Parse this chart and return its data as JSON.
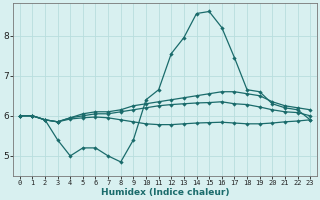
{
  "xlabel": "Humidex (Indice chaleur)",
  "x": [
    0,
    1,
    2,
    3,
    4,
    5,
    6,
    7,
    8,
    9,
    10,
    11,
    12,
    13,
    14,
    15,
    16,
    17,
    18,
    19,
    20,
    21,
    22,
    23
  ],
  "line_top": [
    6.0,
    6.0,
    5.9,
    5.4,
    5.0,
    5.2,
    5.2,
    5.0,
    4.85,
    5.4,
    6.4,
    6.65,
    7.55,
    7.95,
    8.55,
    8.6,
    8.2,
    7.45,
    6.65,
    6.6,
    6.3,
    6.2,
    6.15,
    5.9
  ],
  "line_mid_upper": [
    6.0,
    6.0,
    5.9,
    5.85,
    5.95,
    6.05,
    6.1,
    6.1,
    6.15,
    6.25,
    6.3,
    6.35,
    6.4,
    6.45,
    6.5,
    6.55,
    6.6,
    6.6,
    6.55,
    6.5,
    6.35,
    6.25,
    6.2,
    6.15
  ],
  "line_mid_lower": [
    6.0,
    6.0,
    5.9,
    5.85,
    5.95,
    6.0,
    6.05,
    6.05,
    6.1,
    6.15,
    6.2,
    6.25,
    6.28,
    6.3,
    6.32,
    6.33,
    6.35,
    6.3,
    6.28,
    6.22,
    6.15,
    6.1,
    6.08,
    6.0
  ],
  "line_bottom": [
    6.0,
    6.0,
    5.9,
    5.85,
    5.92,
    5.95,
    5.97,
    5.95,
    5.9,
    5.85,
    5.8,
    5.78,
    5.78,
    5.8,
    5.82,
    5.83,
    5.84,
    5.82,
    5.8,
    5.8,
    5.82,
    5.85,
    5.87,
    5.9
  ],
  "line_color": "#1a6b6b",
  "background_color": "#d8f0f0",
  "grid_color": "#b8dede",
  "ylim": [
    4.5,
    8.8
  ],
  "yticks": [
    5,
    6,
    7,
    8
  ],
  "xticks": [
    0,
    1,
    2,
    3,
    4,
    5,
    6,
    7,
    8,
    9,
    10,
    11,
    12,
    13,
    14,
    15,
    16,
    17,
    18,
    19,
    20,
    21,
    22,
    23
  ],
  "marker": "D",
  "markersize": 2.2,
  "linewidth": 0.9,
  "tick_fontsize": 5.0,
  "xlabel_fontsize": 6.5
}
